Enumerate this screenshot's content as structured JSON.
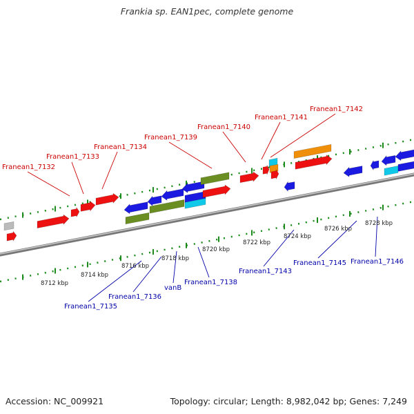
{
  "title": "Frankia sp. EAN1pec, complete genome",
  "accession": "Accession: NC_009921",
  "summary": "Topology: circular; Length: 8,982,042 bp; Genes: 7,249",
  "colors": {
    "forward_label": "#cc0000",
    "reverse_label": "#0000aa",
    "gene_red": "#ee1111",
    "gene_blue": "#1a1ae0",
    "gene_green": "#6b8e23",
    "gene_orange": "#f0900a",
    "gene_cyan": "#10c8e8",
    "gene_grey": "#bbbbbb",
    "tick": "#1a8a1a",
    "backbone": "#888888"
  },
  "ticks": [
    "8712 kbp",
    "8714 kbp",
    "8716 kbp",
    "8718 kbp",
    "8720 kbp",
    "8722 kbp",
    "8724 kbp",
    "8726 kbp",
    "8728 kbp"
  ],
  "forward_labels": [
    "Franean1_7132",
    "Franean1_7133",
    "Franean1_7134",
    "Franean1_7139",
    "Franean1_7140",
    "Franean1_7141",
    "Franean1_7142"
  ],
  "reverse_labels": [
    "Franean1_7135",
    "Franean1_7136",
    "vanB",
    "Franean1_7138",
    "Franean1_7143",
    "Franean1_7145",
    "Franean1_7146"
  ]
}
